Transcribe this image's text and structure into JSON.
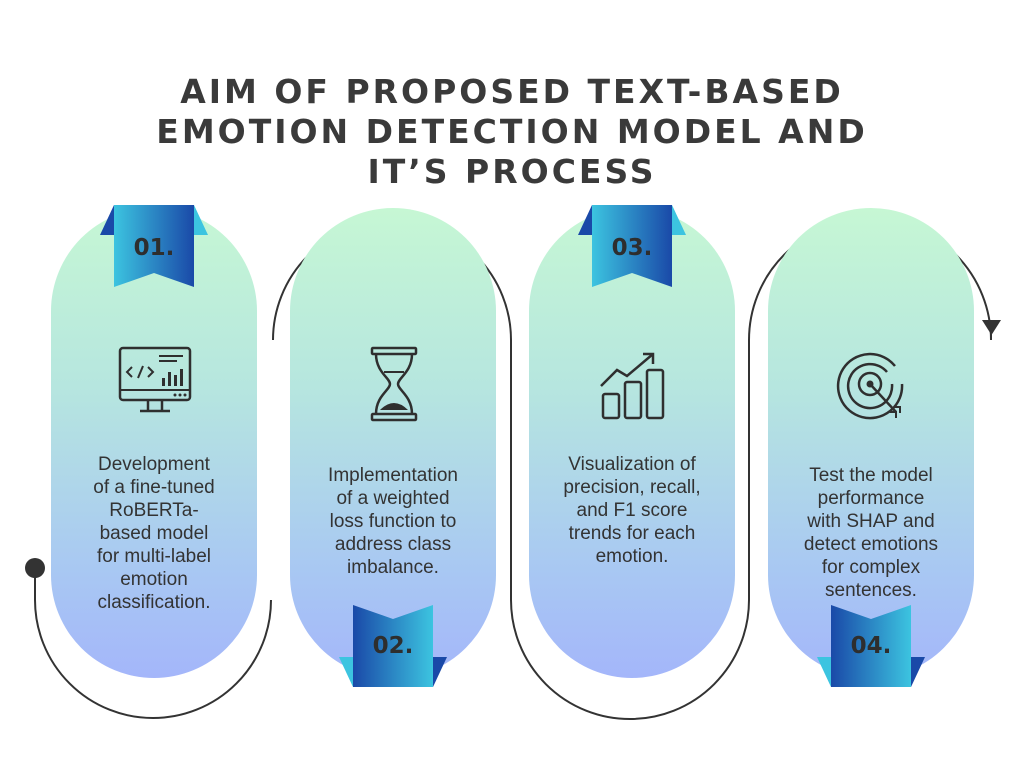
{
  "title": {
    "lines": [
      "AIM OF PROPOSED TEXT-BASED",
      "EMOTION DETECTION MODEL AND",
      "IT’S PROCESS"
    ]
  },
  "steps": [
    {
      "number": "01.",
      "icon": "code-monitor-icon",
      "lines": [
        "Development",
        "of a fine-tuned",
        "RoBERTa-",
        "based model",
        "for multi-label",
        "emotion",
        "classification."
      ]
    },
    {
      "number": "02.",
      "icon": "hourglass-icon",
      "lines": [
        "Implementation",
        "of a weighted",
        "loss function to",
        "address class",
        "imbalance."
      ]
    },
    {
      "number": "03.",
      "icon": "growth-chart-icon",
      "lines": [
        "Visualization of",
        "precision, recall,",
        "and F1 score",
        "trends for each",
        "emotion."
      ]
    },
    {
      "number": "04.",
      "icon": "target-icon",
      "lines": [
        "Test the model",
        "performance",
        "with SHAP and",
        "detect emotions",
        "for complex",
        "sentences."
      ]
    }
  ],
  "colors": {
    "ribbon_light": "#3cc4e0",
    "ribbon_dark": "#1a49a8",
    "connector": "#333333"
  }
}
